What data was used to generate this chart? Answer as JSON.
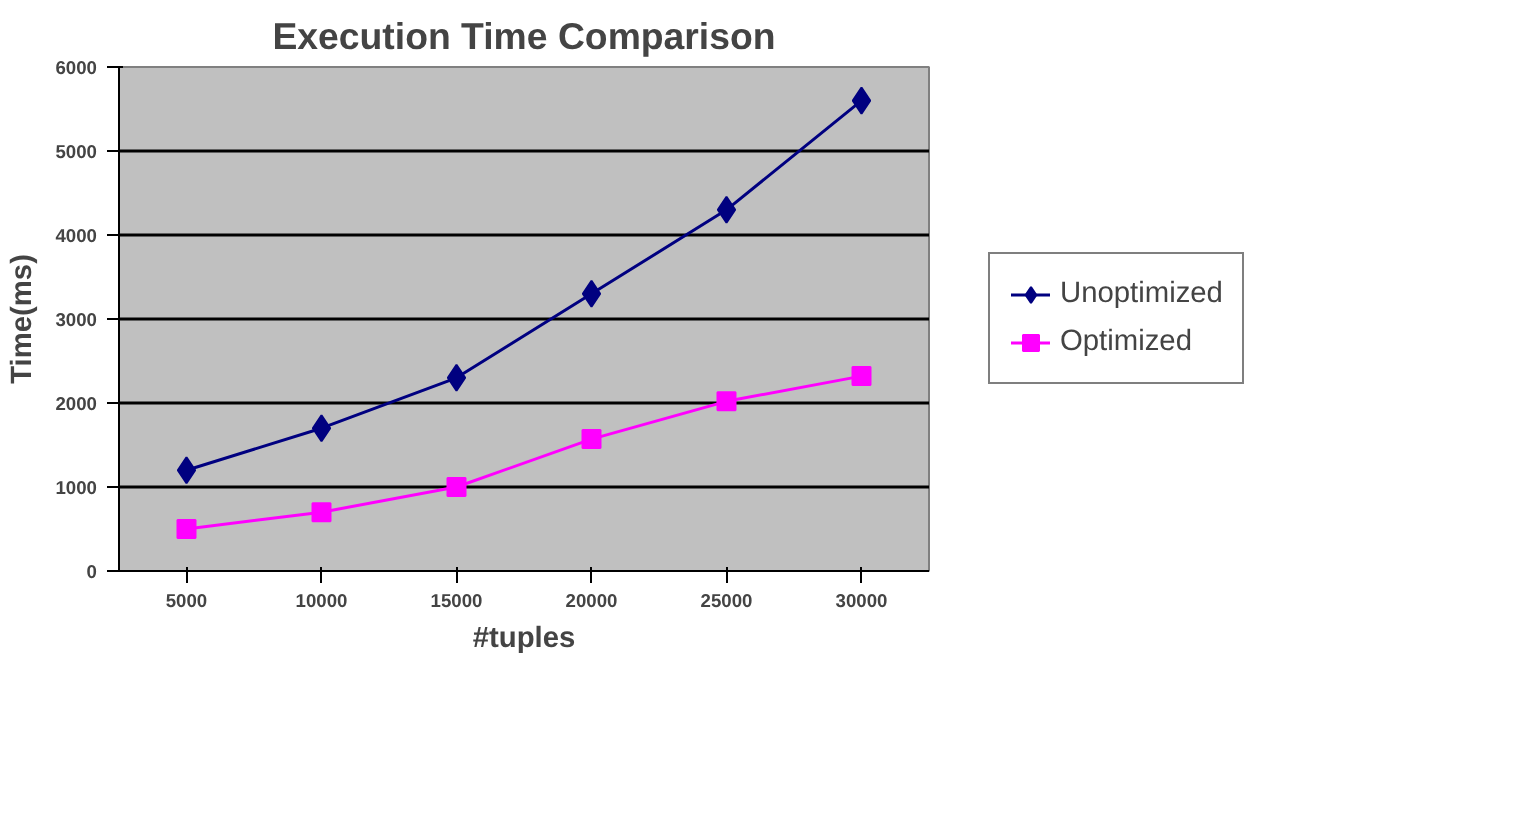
{
  "chart_data": {
    "type": "line",
    "title": "Execution Time Comparison",
    "xlabel": "#tuples",
    "ylabel": "Time(ms)",
    "categories": [
      "5000",
      "10000",
      "15000",
      "20000",
      "25000",
      "30000"
    ],
    "series": [
      {
        "name": "Unoptimized",
        "color": "#000080",
        "marker": "diamond",
        "values": [
          1200,
          1700,
          2300,
          3300,
          4300,
          5600
        ]
      },
      {
        "name": "Optimized",
        "color": "#ff00ff",
        "marker": "square",
        "values": [
          500,
          700,
          1000,
          1570,
          2020,
          2320
        ]
      }
    ],
    "ylim": [
      0,
      6000
    ],
    "yticks": [
      0,
      1000,
      2000,
      3000,
      4000,
      5000,
      6000
    ],
    "grid": "y",
    "legend": "right"
  }
}
